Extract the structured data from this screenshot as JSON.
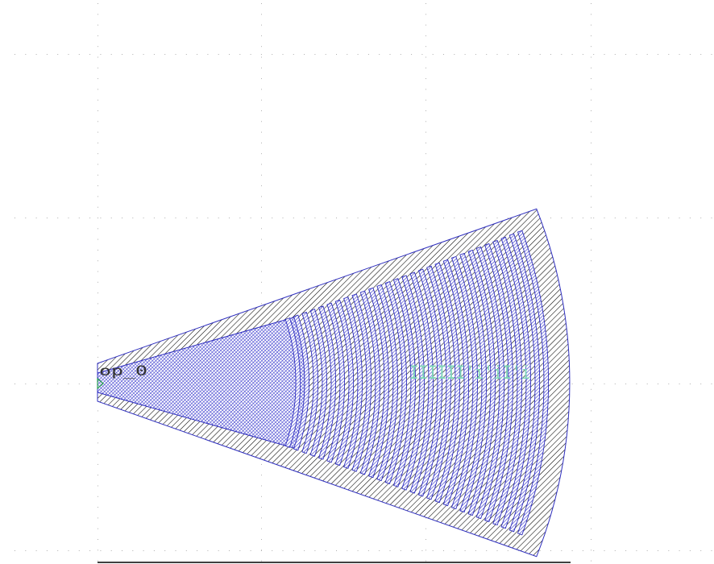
{
  "layout": {
    "component": "sector grating coupler",
    "labels": {
      "port_label": "op_0",
      "layer_annotation": "IIIIII'i'iI'i"
    },
    "colors": {
      "background": "#ffffff",
      "grid_dot": "#b8b8b8",
      "cladding_outline": "#000000",
      "cladding_hatch": "#000000",
      "waveguide_outline": "#2f2fbf",
      "waveguide_hatch": "#3333cc",
      "label_color": "#333333",
      "annotation_color": "#7fd6b8",
      "pin_marker": "#28a050"
    },
    "grating": {
      "teeth_count": 29
    }
  }
}
